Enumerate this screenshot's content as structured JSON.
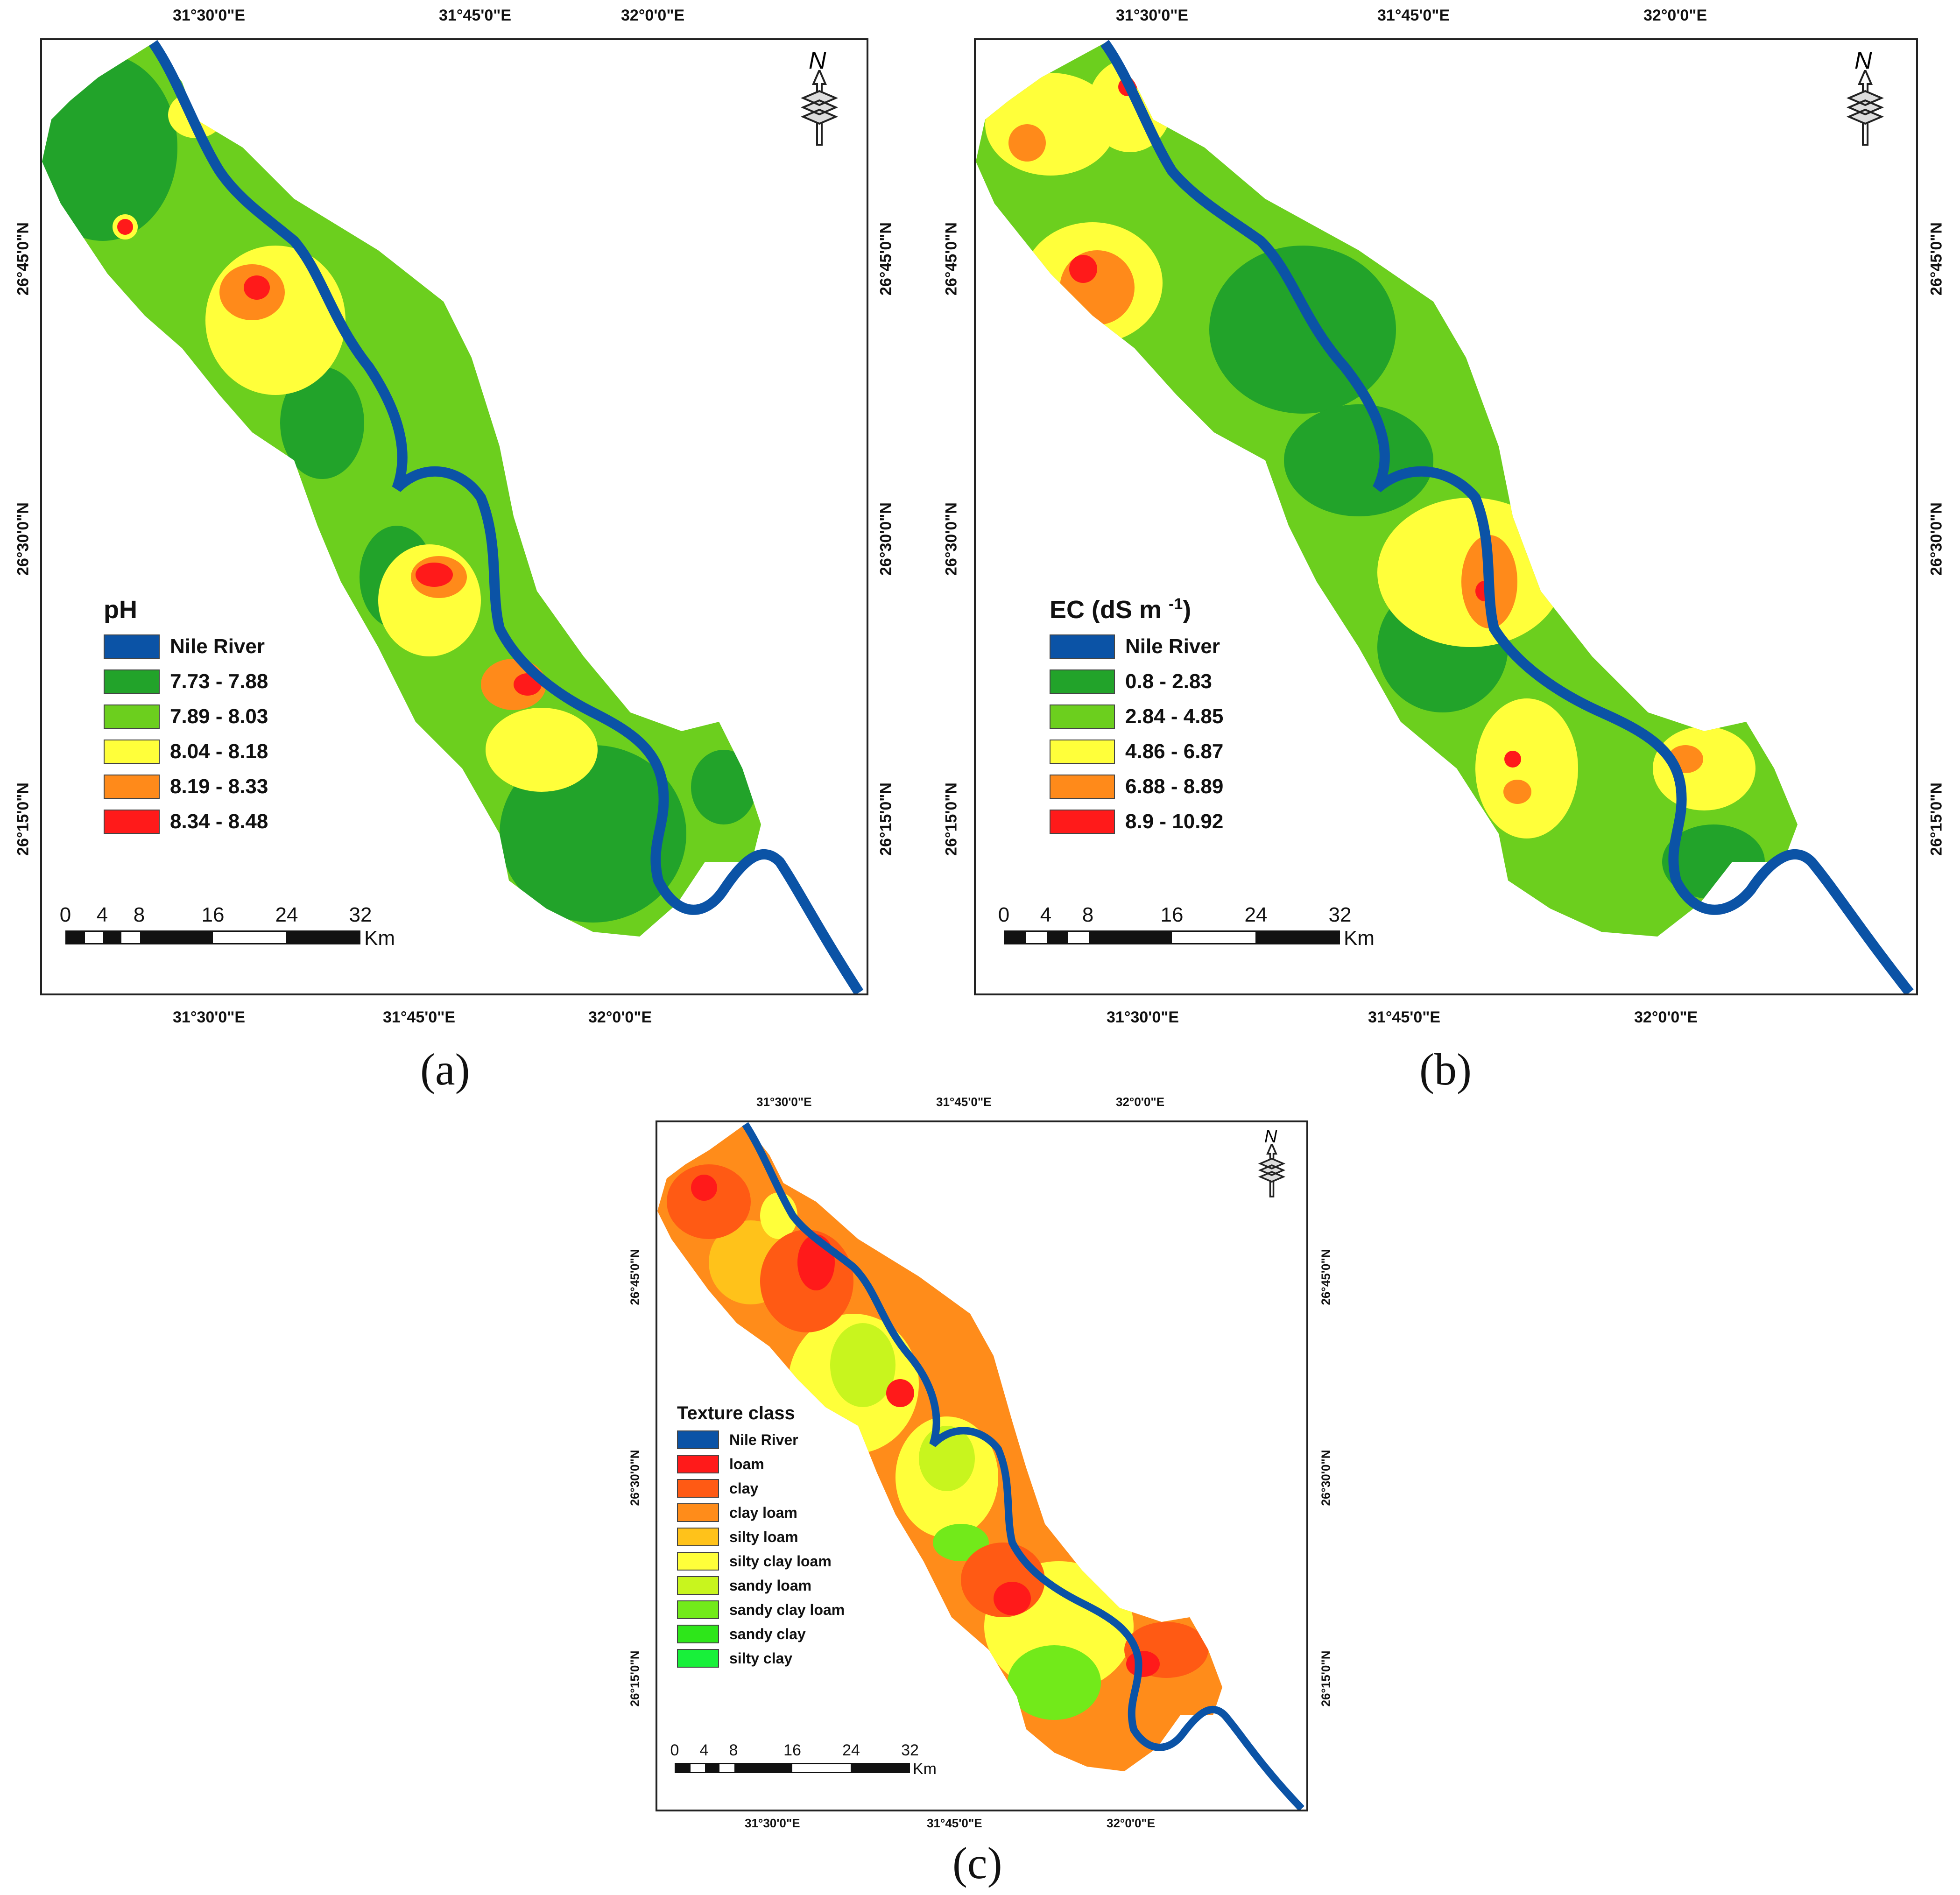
{
  "panels": [
    {
      "id": "a",
      "caption": "(a)",
      "legend_title": "pH",
      "legend": [
        {
          "label": "Nile River",
          "color": "#0b53a6"
        },
        {
          "label": "7.73 - 7.88",
          "color": "#22a32a"
        },
        {
          "label": "7.89 - 8.03",
          "color": "#6ccf1e"
        },
        {
          "label": "8.04 - 8.18",
          "color": "#ffff3a"
        },
        {
          "label": "8.19 - 8.33",
          "color": "#ff8a1a"
        },
        {
          "label": "8.34 - 8.48",
          "color": "#ff1a1a"
        }
      ],
      "top_lon": [
        "31°30'0\"E",
        "31°45'0\"E",
        "32°0'0\"E"
      ],
      "bottom_lon": [
        "31°30'0\"E",
        "31°45'0\"E",
        "32°0'0\"E"
      ],
      "left_lat": [
        "26°45'0\"N",
        "26°30'0\"N",
        "26°15'0\"N"
      ],
      "right_lat": [
        "26°45'0\"N",
        "26°30'0\"N",
        "26°15'0\"N"
      ],
      "scale_ticks": [
        "0",
        "4",
        "8",
        "16",
        "24",
        "32"
      ],
      "scale_unit": "Km",
      "north": "N"
    },
    {
      "id": "b",
      "caption": "(b)",
      "legend_title": "EC (dS m -1)",
      "legend_title_main": "EC (dS m",
      "legend_title_sup": "-1",
      "legend_title_end": ")",
      "legend": [
        {
          "label": "Nile River",
          "color": "#0b53a6"
        },
        {
          "label": "0.8 - 2.83",
          "color": "#22a32a"
        },
        {
          "label": "2.84 - 4.85",
          "color": "#6ccf1e"
        },
        {
          "label": "4.86 - 6.87",
          "color": "#ffff3a"
        },
        {
          "label": "6.88 - 8.89",
          "color": "#ff8a1a"
        },
        {
          "label": "8.9 - 10.92",
          "color": "#ff1a1a"
        }
      ],
      "top_lon": [
        "31°30'0\"E",
        "31°45'0\"E",
        "32°0'0\"E"
      ],
      "bottom_lon": [
        "31°30'0\"E",
        "31°45'0\"E",
        "32°0'0\"E"
      ],
      "left_lat": [
        "26°45'0\"N",
        "26°30'0\"N",
        "26°15'0\"N"
      ],
      "right_lat": [
        "26°45'0\"N",
        "26°30'0\"N",
        "26°15'0\"N"
      ],
      "scale_ticks": [
        "0",
        "4",
        "8",
        "16",
        "24",
        "32"
      ],
      "scale_unit": "Km",
      "north": "N"
    },
    {
      "id": "c",
      "caption": "(c)",
      "legend_title": "Texture class",
      "legend": [
        {
          "label": "Nile River",
          "color": "#0b53a6"
        },
        {
          "label": "loam",
          "color": "#ff1a1a"
        },
        {
          "label": "clay",
          "color": "#ff5a14"
        },
        {
          "label": "clay  loam",
          "color": "#ff8c1a"
        },
        {
          "label": "silty loam",
          "color": "#ffc21a"
        },
        {
          "label": "silty clay loam",
          "color": "#ffff3a"
        },
        {
          "label": "sandy loam",
          "color": "#c8f51e"
        },
        {
          "label": "sandy clay loam",
          "color": "#72ea1a"
        },
        {
          "label": "sandy clay",
          "color": "#2ee61a"
        },
        {
          "label": "silty clay",
          "color": "#18f03a"
        }
      ],
      "top_lon": [
        "31°30'0\"E",
        "31°45'0\"E",
        "32°0'0\"E"
      ],
      "bottom_lon": [
        "31°30'0\"E",
        "31°45'0\"E",
        "32°0'0\"E"
      ],
      "left_lat": [
        "26°45'0\"N",
        "26°30'0\"N",
        "26°15'0\"N"
      ],
      "right_lat": [
        "26°45'0\"N",
        "26°30'0\"N",
        "26°15'0\"N"
      ],
      "scale_ticks": [
        "0",
        "4",
        "8",
        "16",
        "24",
        "32"
      ],
      "scale_unit": "Km",
      "north": "N"
    }
  ]
}
